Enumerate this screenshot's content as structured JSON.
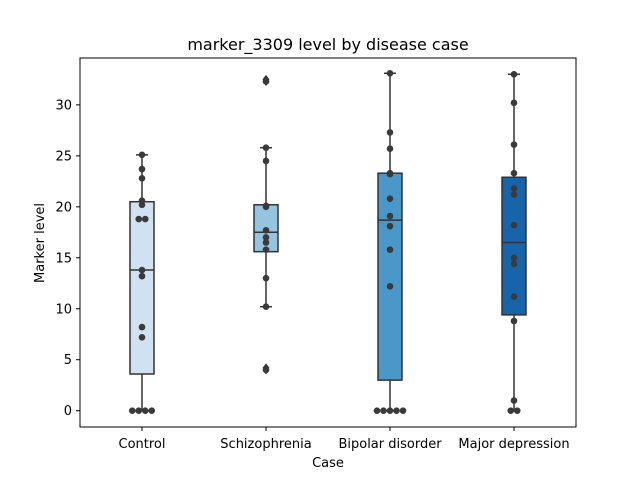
{
  "chart_data": {
    "type": "box",
    "title": "marker_3309 level by disease case",
    "xlabel": "Case",
    "ylabel": "Marker level",
    "ylim": [
      -1.6,
      34.6
    ],
    "yticks": [
      0,
      5,
      10,
      15,
      20,
      25,
      30
    ],
    "categories": [
      "Control",
      "Schizophrenia",
      "Bipolar disorder",
      "Major depression"
    ],
    "colors": [
      "#d0e1f2",
      "#94c4df",
      "#4a98c9",
      "#1764ab"
    ],
    "boxes": [
      {
        "q1": 3.6,
        "median": 13.8,
        "q3": 20.5,
        "whisker_low": 0,
        "whisker_high": 25.1,
        "outliers": []
      },
      {
        "q1": 15.6,
        "median": 17.5,
        "q3": 20.2,
        "whisker_low": 10.2,
        "whisker_high": 25.8,
        "outliers": [
          4.0,
          4.2,
          32.3,
          32.5
        ]
      },
      {
        "q1": 3.0,
        "median": 18.7,
        "q3": 23.3,
        "whisker_low": 0,
        "whisker_high": 33.1,
        "outliers": []
      },
      {
        "q1": 9.4,
        "median": 16.5,
        "q3": 22.9,
        "whisker_low": 0,
        "whisker_high": 33.0,
        "outliers": []
      }
    ],
    "points": [
      [
        0,
        0,
        0,
        0,
        7.2,
        8.2,
        13.2,
        13.8,
        18.8,
        18.8,
        20.2,
        20.6,
        22.8,
        23.7,
        25.1
      ],
      [
        4.0,
        10.2,
        13.0,
        15.8,
        16.5,
        17.0,
        17.7,
        20.0,
        20.1,
        24.5,
        25.8,
        32.3
      ],
      [
        0,
        0,
        0,
        0,
        0,
        12.2,
        15.8,
        18.1,
        19.1,
        20.8,
        23.2,
        23.3,
        25.7,
        27.3,
        33.1
      ],
      [
        0,
        0,
        1.0,
        8.8,
        11.2,
        14.4,
        15.0,
        18.2,
        21.2,
        21.8,
        23.3,
        26.1,
        30.2,
        33.0
      ]
    ]
  }
}
